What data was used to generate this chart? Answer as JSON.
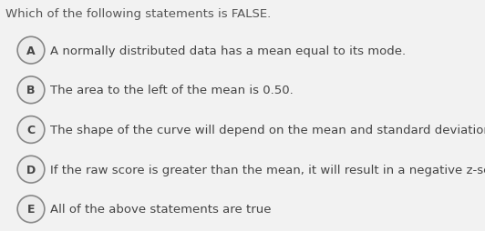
{
  "title": "Which of the following statements is FALSE.",
  "title_fontsize": 9.5,
  "title_color": "#555555",
  "background_color": "#f2f2f2",
  "title_bg_color": "#ffffff",
  "options": [
    {
      "label": "A",
      "text": "A normally distributed data has a mean equal to its mode."
    },
    {
      "label": "B",
      "text": "The area to the left of the mean is 0.50."
    },
    {
      "label": "C",
      "text": "The shape of the curve will depend on the mean and standard deviation."
    },
    {
      "label": "D",
      "text": "If the raw score is greater than the mean, it will result in a negative z-score."
    },
    {
      "label": "E",
      "text": "All of the above statements are true"
    }
  ],
  "option_bg_color": "#ebebeb",
  "option_text_color": "#444444",
  "circle_edge_color": "#888888",
  "circle_face_color": "#ebebeb",
  "label_fontsize": 9.0,
  "text_fontsize": 9.5,
  "fig_width": 5.32,
  "fig_height": 2.55,
  "dpi": 100
}
